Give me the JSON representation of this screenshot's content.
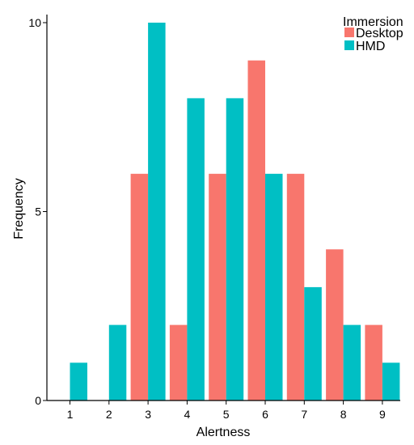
{
  "chart_data": {
    "type": "bar",
    "title": "",
    "xlabel": "Alertness",
    "ylabel": "Frequency",
    "categories": [
      "1",
      "2",
      "3",
      "4",
      "5",
      "6",
      "7",
      "8",
      "9"
    ],
    "yticks": [
      "0",
      "5",
      "10"
    ],
    "ytick_values": [
      0,
      5,
      10
    ],
    "ylim": [
      0,
      10
    ],
    "grid": false,
    "legend": {
      "title": "Immersion",
      "placement": "top-right"
    },
    "series": [
      {
        "name": "Desktop",
        "color": "#F8766D",
        "values": [
          0,
          0,
          6,
          2,
          6,
          9,
          6,
          4,
          2
        ]
      },
      {
        "name": "HMD",
        "color": "#00BFC4",
        "values": [
          1,
          2,
          10,
          8,
          8,
          6,
          3,
          2,
          1
        ]
      }
    ]
  }
}
